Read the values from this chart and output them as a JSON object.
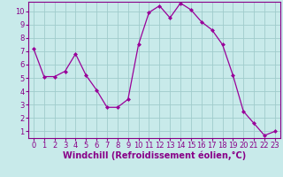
{
  "x": [
    0,
    1,
    2,
    3,
    4,
    5,
    6,
    7,
    8,
    9,
    10,
    11,
    12,
    13,
    14,
    15,
    16,
    17,
    18,
    19,
    20,
    21,
    22,
    23
  ],
  "y": [
    7.2,
    5.1,
    5.1,
    5.5,
    6.8,
    5.2,
    4.1,
    2.8,
    2.8,
    3.4,
    7.5,
    9.9,
    10.4,
    9.5,
    10.6,
    10.1,
    9.2,
    8.6,
    7.5,
    5.2,
    2.5,
    1.6,
    0.7,
    1.0
  ],
  "line_color": "#990099",
  "marker": "D",
  "marker_size": 2.0,
  "bg_color": "#c8eaea",
  "grid_color": "#a0cccc",
  "xlabel": "Windchill (Refroidissement éolien,°C)",
  "ylim": [
    0.5,
    10.7
  ],
  "xlim": [
    -0.5,
    23.5
  ],
  "yticks": [
    1,
    2,
    3,
    4,
    5,
    6,
    7,
    8,
    9,
    10
  ],
  "xticks": [
    0,
    1,
    2,
    3,
    4,
    5,
    6,
    7,
    8,
    9,
    10,
    11,
    12,
    13,
    14,
    15,
    16,
    17,
    18,
    19,
    20,
    21,
    22,
    23
  ],
  "tick_color": "#880088",
  "xlabel_color": "#880088",
  "spine_color": "#880088",
  "xlabel_fontsize": 7.0,
  "tick_fontsize": 6.0
}
